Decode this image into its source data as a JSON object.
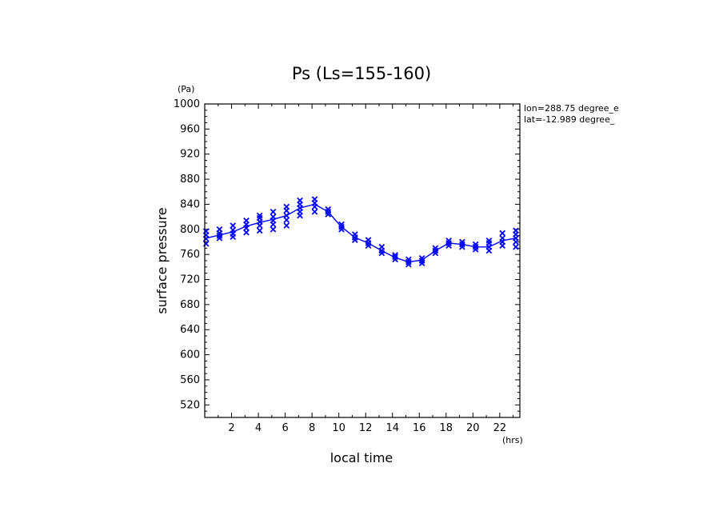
{
  "chart_data": {
    "type": "scatter",
    "title": "Ps (Ls=155-160)",
    "xlabel": "local time",
    "ylabel": "surface pressure",
    "x_unit": "(hrs)",
    "y_unit": "(Pa)",
    "xlim": [
      0,
      23.5
    ],
    "ylim": [
      500,
      1000
    ],
    "x_ticks": [
      2,
      4,
      6,
      8,
      10,
      12,
      14,
      16,
      18,
      20,
      22
    ],
    "y_ticks": [
      520,
      560,
      600,
      640,
      680,
      720,
      760,
      800,
      840,
      880,
      920,
      960,
      1000
    ],
    "grid": false,
    "annotations": [
      "lon=288.75 degree_e",
      "lat=-12.989 degree_"
    ],
    "series": [
      {
        "color": "#0000ff",
        "marker": "x",
        "points": [
          [
            0.1,
            777
          ],
          [
            0.1,
            785
          ],
          [
            0.1,
            791
          ],
          [
            0.1,
            797
          ],
          [
            1.1,
            786
          ],
          [
            1.1,
            790
          ],
          [
            1.1,
            794
          ],
          [
            1.1,
            800
          ],
          [
            2.1,
            788
          ],
          [
            2.1,
            793
          ],
          [
            2.1,
            799
          ],
          [
            2.1,
            806
          ],
          [
            3.1,
            795
          ],
          [
            3.1,
            802
          ],
          [
            3.1,
            808
          ],
          [
            3.1,
            814
          ],
          [
            4.1,
            798
          ],
          [
            4.1,
            806
          ],
          [
            4.1,
            812
          ],
          [
            4.1,
            818
          ],
          [
            4.1,
            822
          ],
          [
            5.1,
            800
          ],
          [
            5.1,
            808
          ],
          [
            5.1,
            814
          ],
          [
            5.1,
            820
          ],
          [
            5.1,
            828
          ],
          [
            6.1,
            806
          ],
          [
            6.1,
            815
          ],
          [
            6.1,
            822
          ],
          [
            6.1,
            830
          ],
          [
            6.1,
            836
          ],
          [
            7.1,
            822
          ],
          [
            7.1,
            828
          ],
          [
            7.1,
            834
          ],
          [
            7.1,
            840
          ],
          [
            7.1,
            846
          ],
          [
            8.2,
            828
          ],
          [
            8.2,
            836
          ],
          [
            8.2,
            842
          ],
          [
            8.2,
            848
          ],
          [
            9.2,
            824
          ],
          [
            9.2,
            828
          ],
          [
            9.2,
            832
          ],
          [
            10.2,
            800
          ],
          [
            10.2,
            804
          ],
          [
            10.2,
            808
          ],
          [
            11.2,
            783
          ],
          [
            11.2,
            787
          ],
          [
            11.2,
            792
          ],
          [
            12.2,
            774
          ],
          [
            12.2,
            778
          ],
          [
            12.2,
            783
          ],
          [
            13.2,
            762
          ],
          [
            13.2,
            766
          ],
          [
            13.2,
            772
          ],
          [
            14.2,
            752
          ],
          [
            14.2,
            756
          ],
          [
            14.2,
            759
          ],
          [
            15.2,
            744
          ],
          [
            15.2,
            748
          ],
          [
            15.2,
            752
          ],
          [
            16.2,
            746
          ],
          [
            16.2,
            750
          ],
          [
            16.2,
            754
          ],
          [
            17.2,
            762
          ],
          [
            17.2,
            766
          ],
          [
            17.2,
            770
          ],
          [
            18.2,
            774
          ],
          [
            18.2,
            778
          ],
          [
            18.2,
            782
          ],
          [
            19.2,
            772
          ],
          [
            19.2,
            776
          ],
          [
            19.2,
            780
          ],
          [
            20.2,
            768
          ],
          [
            20.2,
            772
          ],
          [
            20.2,
            776
          ],
          [
            21.2,
            766
          ],
          [
            21.2,
            772
          ],
          [
            21.2,
            778
          ],
          [
            21.2,
            782
          ],
          [
            22.2,
            774
          ],
          [
            22.2,
            780
          ],
          [
            22.2,
            786
          ],
          [
            22.2,
            794
          ],
          [
            23.2,
            772
          ],
          [
            23.2,
            780
          ],
          [
            23.2,
            786
          ],
          [
            23.2,
            792
          ],
          [
            23.2,
            798
          ]
        ]
      },
      {
        "color": "#0000ff",
        "marker": "line",
        "points": [
          [
            0.1,
            786
          ],
          [
            1.1,
            791
          ],
          [
            2.1,
            796
          ],
          [
            3.1,
            805
          ],
          [
            4.1,
            811
          ],
          [
            5.1,
            816
          ],
          [
            6.1,
            822
          ],
          [
            7.1,
            834
          ],
          [
            8.2,
            840
          ],
          [
            9.2,
            828
          ],
          [
            10.2,
            804
          ],
          [
            11.2,
            787
          ],
          [
            12.2,
            778
          ],
          [
            13.2,
            766
          ],
          [
            14.2,
            755
          ],
          [
            15.2,
            748
          ],
          [
            16.2,
            751
          ],
          [
            17.2,
            766
          ],
          [
            18.2,
            778
          ],
          [
            19.2,
            776
          ],
          [
            20.2,
            772
          ],
          [
            21.2,
            772
          ],
          [
            22.2,
            782
          ],
          [
            23.2,
            786
          ]
        ]
      }
    ]
  }
}
